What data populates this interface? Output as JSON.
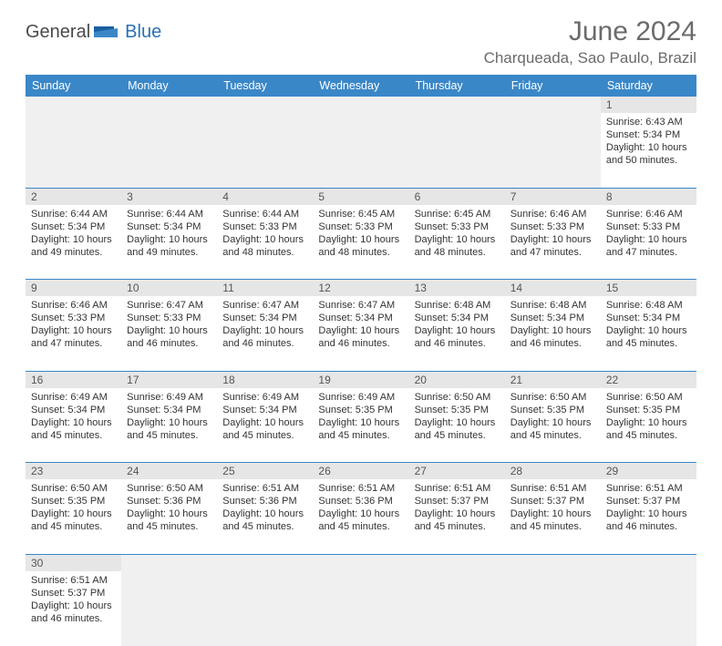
{
  "logo": {
    "part1": "General",
    "part2": "Blue"
  },
  "title": "June 2024",
  "location": "Charqueada, Sao Paulo, Brazil",
  "colors": {
    "header_bg": "#3a87c8",
    "header_fg": "#ffffff",
    "shade": "#e6e6e6",
    "rule": "#3a87c8"
  },
  "weekdays": [
    "Sunday",
    "Monday",
    "Tuesday",
    "Wednesday",
    "Thursday",
    "Friday",
    "Saturday"
  ],
  "weeks": [
    [
      null,
      null,
      null,
      null,
      null,
      null,
      {
        "n": "1",
        "sr": "6:43 AM",
        "ss": "5:34 PM",
        "dl": "10 hours and 50 minutes."
      }
    ],
    [
      {
        "n": "2",
        "sr": "6:44 AM",
        "ss": "5:34 PM",
        "dl": "10 hours and 49 minutes."
      },
      {
        "n": "3",
        "sr": "6:44 AM",
        "ss": "5:34 PM",
        "dl": "10 hours and 49 minutes."
      },
      {
        "n": "4",
        "sr": "6:44 AM",
        "ss": "5:33 PM",
        "dl": "10 hours and 48 minutes."
      },
      {
        "n": "5",
        "sr": "6:45 AM",
        "ss": "5:33 PM",
        "dl": "10 hours and 48 minutes."
      },
      {
        "n": "6",
        "sr": "6:45 AM",
        "ss": "5:33 PM",
        "dl": "10 hours and 48 minutes."
      },
      {
        "n": "7",
        "sr": "6:46 AM",
        "ss": "5:33 PM",
        "dl": "10 hours and 47 minutes."
      },
      {
        "n": "8",
        "sr": "6:46 AM",
        "ss": "5:33 PM",
        "dl": "10 hours and 47 minutes."
      }
    ],
    [
      {
        "n": "9",
        "sr": "6:46 AM",
        "ss": "5:33 PM",
        "dl": "10 hours and 47 minutes."
      },
      {
        "n": "10",
        "sr": "6:47 AM",
        "ss": "5:33 PM",
        "dl": "10 hours and 46 minutes."
      },
      {
        "n": "11",
        "sr": "6:47 AM",
        "ss": "5:34 PM",
        "dl": "10 hours and 46 minutes."
      },
      {
        "n": "12",
        "sr": "6:47 AM",
        "ss": "5:34 PM",
        "dl": "10 hours and 46 minutes."
      },
      {
        "n": "13",
        "sr": "6:48 AM",
        "ss": "5:34 PM",
        "dl": "10 hours and 46 minutes."
      },
      {
        "n": "14",
        "sr": "6:48 AM",
        "ss": "5:34 PM",
        "dl": "10 hours and 46 minutes."
      },
      {
        "n": "15",
        "sr": "6:48 AM",
        "ss": "5:34 PM",
        "dl": "10 hours and 45 minutes."
      }
    ],
    [
      {
        "n": "16",
        "sr": "6:49 AM",
        "ss": "5:34 PM",
        "dl": "10 hours and 45 minutes."
      },
      {
        "n": "17",
        "sr": "6:49 AM",
        "ss": "5:34 PM",
        "dl": "10 hours and 45 minutes."
      },
      {
        "n": "18",
        "sr": "6:49 AM",
        "ss": "5:34 PM",
        "dl": "10 hours and 45 minutes."
      },
      {
        "n": "19",
        "sr": "6:49 AM",
        "ss": "5:35 PM",
        "dl": "10 hours and 45 minutes."
      },
      {
        "n": "20",
        "sr": "6:50 AM",
        "ss": "5:35 PM",
        "dl": "10 hours and 45 minutes."
      },
      {
        "n": "21",
        "sr": "6:50 AM",
        "ss": "5:35 PM",
        "dl": "10 hours and 45 minutes."
      },
      {
        "n": "22",
        "sr": "6:50 AM",
        "ss": "5:35 PM",
        "dl": "10 hours and 45 minutes."
      }
    ],
    [
      {
        "n": "23",
        "sr": "6:50 AM",
        "ss": "5:35 PM",
        "dl": "10 hours and 45 minutes."
      },
      {
        "n": "24",
        "sr": "6:50 AM",
        "ss": "5:36 PM",
        "dl": "10 hours and 45 minutes."
      },
      {
        "n": "25",
        "sr": "6:51 AM",
        "ss": "5:36 PM",
        "dl": "10 hours and 45 minutes."
      },
      {
        "n": "26",
        "sr": "6:51 AM",
        "ss": "5:36 PM",
        "dl": "10 hours and 45 minutes."
      },
      {
        "n": "27",
        "sr": "6:51 AM",
        "ss": "5:37 PM",
        "dl": "10 hours and 45 minutes."
      },
      {
        "n": "28",
        "sr": "6:51 AM",
        "ss": "5:37 PM",
        "dl": "10 hours and 45 minutes."
      },
      {
        "n": "29",
        "sr": "6:51 AM",
        "ss": "5:37 PM",
        "dl": "10 hours and 46 minutes."
      }
    ],
    [
      {
        "n": "30",
        "sr": "6:51 AM",
        "ss": "5:37 PM",
        "dl": "10 hours and 46 minutes."
      },
      null,
      null,
      null,
      null,
      null,
      null
    ]
  ],
  "labels": {
    "sunrise": "Sunrise:",
    "sunset": "Sunset:",
    "daylight": "Daylight:"
  }
}
